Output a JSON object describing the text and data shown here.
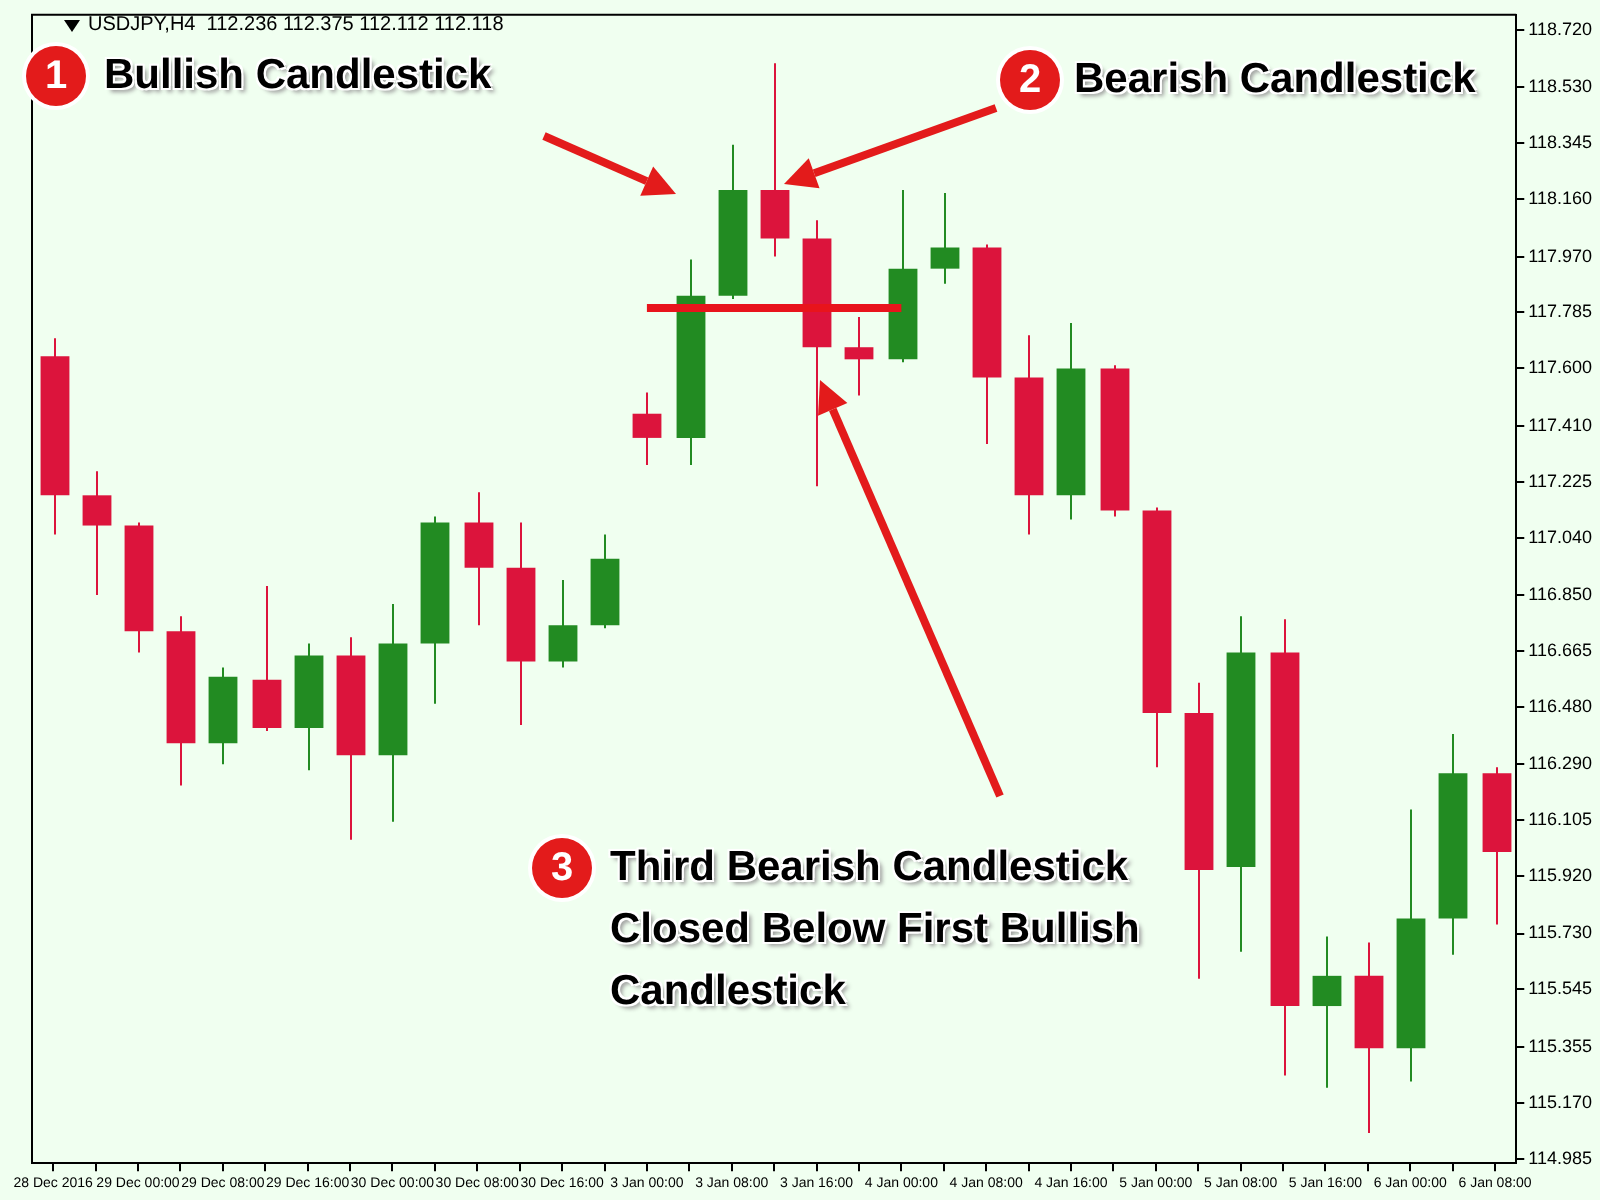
{
  "chart_data": {
    "type": "candlestick",
    "title": "USDJPY,H4  112.236 112.375 112.112 112.118",
    "categories": [
      "28 Dec 2016",
      null,
      "29 Dec 00:00",
      null,
      "29 Dec 08:00",
      null,
      "29 Dec 16:00",
      null,
      "30 Dec 00:00",
      null,
      "30 Dec 08:00",
      null,
      "30 Dec 16:00",
      null,
      "3 Jan 00:00",
      null,
      "3 Jan 08:00",
      null,
      "3 Jan 16:00",
      null,
      "4 Jan 00:00",
      null,
      "4 Jan 08:00",
      null,
      "4 Jan 16:00",
      null,
      "5 Jan 00:00",
      null,
      "5 Jan 08:00",
      null,
      "5 Jan 16:00",
      null,
      "6 Jan 00:00",
      null,
      "6 Jan 08:00"
    ],
    "ohlc": [
      [
        117.64,
        117.7,
        117.05,
        117.18
      ],
      [
        117.18,
        117.26,
        116.85,
        117.08
      ],
      [
        117.08,
        117.09,
        116.66,
        116.73
      ],
      [
        116.73,
        116.78,
        116.22,
        116.36
      ],
      [
        116.36,
        116.61,
        116.29,
        116.58
      ],
      [
        116.57,
        116.88,
        116.4,
        116.41
      ],
      [
        116.41,
        116.69,
        116.27,
        116.65
      ],
      [
        116.65,
        116.71,
        116.04,
        116.32
      ],
      [
        116.32,
        116.82,
        116.1,
        116.69
      ],
      [
        116.69,
        117.11,
        116.49,
        117.09
      ],
      [
        117.09,
        117.19,
        116.75,
        116.94
      ],
      [
        116.94,
        117.09,
        116.42,
        116.63
      ],
      [
        116.63,
        116.9,
        116.61,
        116.75
      ],
      [
        116.75,
        117.05,
        116.74,
        116.97
      ],
      [
        117.45,
        117.52,
        117.28,
        117.37
      ],
      [
        117.37,
        117.96,
        117.28,
        117.84
      ],
      [
        117.84,
        118.34,
        117.83,
        118.19
      ],
      [
        118.19,
        118.61,
        117.97,
        118.03
      ],
      [
        118.03,
        118.09,
        117.21,
        117.67
      ],
      [
        117.67,
        117.77,
        117.51,
        117.63
      ],
      [
        117.63,
        118.19,
        117.62,
        117.93
      ],
      [
        117.93,
        118.18,
        117.88,
        118.0
      ],
      [
        118.0,
        118.01,
        117.35,
        117.57
      ],
      [
        117.57,
        117.71,
        117.05,
        117.18
      ],
      [
        117.18,
        117.75,
        117.1,
        117.6
      ],
      [
        117.6,
        117.61,
        117.11,
        117.13
      ],
      [
        117.13,
        117.14,
        116.28,
        116.46
      ],
      [
        116.46,
        116.56,
        115.58,
        115.94
      ],
      [
        115.95,
        116.78,
        115.67,
        116.66
      ],
      [
        116.66,
        116.77,
        115.26,
        115.49
      ],
      [
        115.49,
        115.72,
        115.22,
        115.59
      ],
      [
        115.59,
        115.7,
        115.07,
        115.35
      ],
      [
        115.35,
        116.14,
        115.24,
        115.78
      ],
      [
        115.78,
        116.39,
        115.66,
        116.26
      ],
      [
        116.26,
        116.28,
        115.76,
        116.0
      ]
    ],
    "colors": [
      "#dc143c",
      "#dc143c",
      "#dc143c",
      "#dc143c",
      "#228b22",
      "#dc143c",
      "#228b22",
      "#dc143c",
      "#228b22",
      "#228b22",
      "#dc143c",
      "#dc143c",
      "#228b22",
      "#228b22",
      "#dc143c",
      "#228b22",
      "#228b22",
      "#dc143c",
      "#dc143c",
      "#dc143c",
      "#228b22",
      "#228b22",
      "#dc143c",
      "#dc143c",
      "#228b22",
      "#dc143c",
      "#dc143c",
      "#dc143c",
      "#228b22",
      "#dc143c",
      "#228b22",
      "#dc143c",
      "#228b22",
      "#228b22",
      "#dc143c"
    ],
    "series": [
      {
        "type": "line",
        "color": "#e8141c",
        "x": [
          "3 Jan 00:00",
          "4 Jan 00:00"
        ],
        "values": [
          117.8,
          117.8
        ]
      }
    ],
    "ylim": [
      114.97,
      118.77
    ],
    "yticks": [
      {
        "value": 118.72,
        "label": "118.720"
      },
      {
        "value": 118.53,
        "label": "118.530"
      },
      118.345,
      {
        "value": 118.16,
        "label": "118.160"
      },
      {
        "value": 117.97,
        "label": "117.970"
      },
      117.785,
      {
        "value": 117.6,
        "label": "117.600"
      },
      {
        "value": 117.41,
        "label": "117.410"
      },
      117.225,
      {
        "value": 117.04,
        "label": "117.040"
      },
      {
        "value": 116.85,
        "label": "116.850"
      },
      116.665,
      {
        "value": 116.48,
        "label": "116.480"
      },
      {
        "value": 116.29,
        "label": "116.290"
      },
      116.105,
      {
        "value": 115.92,
        "label": "115.920"
      },
      {
        "value": 115.73,
        "label": "115.730"
      },
      115.545,
      {
        "value": 115.355,
        "label": "115.355"
      },
      {
        "value": 115.17,
        "label": "115.170"
      },
      114.985
    ],
    "grid": false,
    "legend": false,
    "annotations": [
      "1",
      "Bullish Candlestick",
      "2",
      "Bearish Candlestick",
      "3",
      "Third Bearish Candlestick Closed Below First Bullish Candlestick"
    ]
  }
}
